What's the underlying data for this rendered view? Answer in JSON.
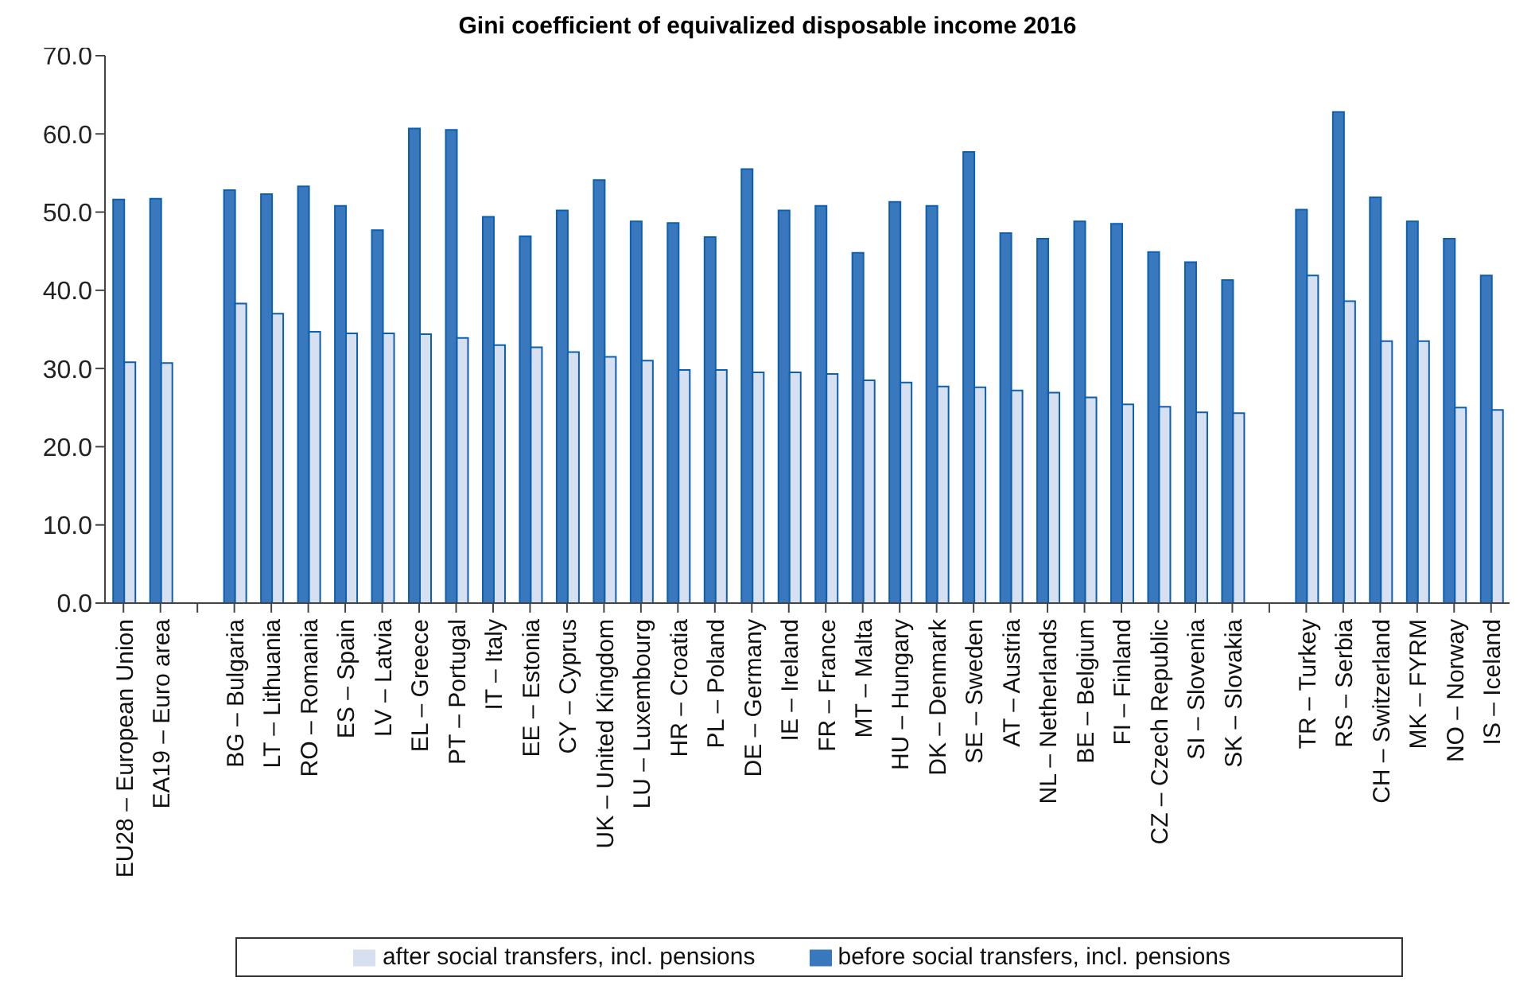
{
  "chart_data": {
    "type": "bar",
    "title": "Gini coefficient of equivalized disposable income 2016",
    "categories": [
      "EU28 – European Union",
      "EA19 – Euro area",
      null,
      "BG – Bulgaria",
      "LT – Lithuania",
      "RO – Romania",
      "ES – Spain",
      "LV – Latvia",
      "EL – Greece",
      "PT – Portugal",
      "IT – Italy",
      "EE – Estonia",
      "CY – Cyprus",
      "UK – United Kingdom",
      "LU – Luxembourg",
      "HR – Croatia",
      "PL – Poland",
      "DE – Germany",
      "IE – Ireland",
      "FR – France",
      "MT – Malta",
      "HU – Hungary",
      "DK – Denmark",
      "SE – Sweden",
      "AT – Austria",
      "NL – Netherlands",
      "BE – Belgium",
      "FI – Finland",
      "CZ – Czech Republic",
      "SI – Slovenia",
      "SK – Slovakia",
      null,
      "TR – Turkey",
      "RS – Serbia",
      "CH – Switzerland",
      "MK – FYRM",
      "NO – Norway",
      "IS – Iceland"
    ],
    "series": [
      {
        "name": "before social transfers, incl. pensions",
        "color": "#3a78bd",
        "values": [
          51.6,
          51.7,
          null,
          52.8,
          52.3,
          53.3,
          50.8,
          47.7,
          60.7,
          60.5,
          49.4,
          46.9,
          50.2,
          54.1,
          48.8,
          48.6,
          46.8,
          55.5,
          50.2,
          50.8,
          44.8,
          51.3,
          50.8,
          57.7,
          47.3,
          46.6,
          48.8,
          48.5,
          44.9,
          43.6,
          41.3,
          null,
          50.3,
          62.8,
          51.9,
          48.8,
          46.6,
          41.9
        ]
      },
      {
        "name": "after social transfers, incl. pensions",
        "color": "#d6e0f0",
        "values": [
          30.8,
          30.7,
          null,
          38.3,
          37.0,
          34.7,
          34.5,
          34.5,
          34.4,
          33.9,
          33.0,
          32.7,
          32.1,
          31.5,
          31.0,
          29.8,
          29.8,
          29.5,
          29.5,
          29.3,
          28.5,
          28.2,
          27.7,
          27.6,
          27.2,
          26.9,
          26.3,
          25.4,
          25.1,
          24.4,
          24.3,
          null,
          41.9,
          38.6,
          33.5,
          33.5,
          25.0,
          24.7
        ]
      }
    ],
    "ylim": [
      0,
      70
    ],
    "yticks": [
      {
        "value": 0,
        "label": "0.0"
      },
      {
        "value": 10,
        "label": "10.0"
      },
      {
        "value": 20,
        "label": "20.0"
      },
      {
        "value": 30,
        "label": "30.0"
      },
      {
        "value": 40,
        "label": "40.0"
      },
      {
        "value": 50,
        "label": "50.0"
      },
      {
        "value": 60,
        "label": "60.0"
      },
      {
        "value": 70,
        "label": "70.0"
      }
    ],
    "grid": false,
    "legend": "bottom"
  }
}
